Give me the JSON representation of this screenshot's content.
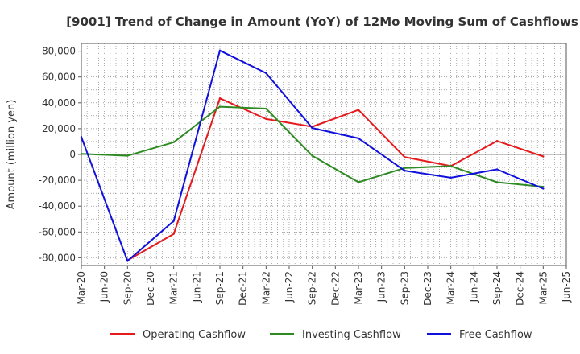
{
  "chart_data": {
    "type": "line",
    "title": "[9001]  Trend of Change in Amount (YoY) of 12Mo Moving Sum of Cashflows",
    "xlabel": "",
    "ylabel": "Amount (million yen)",
    "ylim": [
      -86000,
      86000
    ],
    "yticks": [
      -80000,
      -60000,
      -40000,
      -20000,
      0,
      20000,
      40000,
      60000,
      80000
    ],
    "ytick_labels": [
      "-80,000",
      "-60,000",
      "-40,000",
      "-20,000",
      "0",
      "20,000",
      "40,000",
      "60,000",
      "80,000"
    ],
    "categories": [
      "Mar-20",
      "Jun-20",
      "Sep-20",
      "Dec-20",
      "Mar-21",
      "Jun-21",
      "Sep-21",
      "Dec-21",
      "Mar-22",
      "Jun-22",
      "Sep-22",
      "Dec-22",
      "Mar-23",
      "Jun-23",
      "Sep-23",
      "Dec-23",
      "Mar-24",
      "Jun-24",
      "Sep-24",
      "Dec-24",
      "Mar-25",
      "Jun-25"
    ],
    "grid": true,
    "legend_position": "bottom",
    "series": [
      {
        "name": "Operating Cashflow",
        "color": "#e41a1c",
        "points": [
          [
            2,
            -82000
          ],
          [
            4,
            -61500
          ],
          [
            6,
            43500
          ],
          [
            8,
            27500
          ],
          [
            10,
            21500
          ],
          [
            12,
            34500
          ],
          [
            14,
            -2000
          ],
          [
            16,
            -9000
          ],
          [
            18,
            10500
          ],
          [
            20,
            -1500
          ]
        ]
      },
      {
        "name": "Investing Cashflow",
        "color": "#2e8b22",
        "points": [
          [
            0,
            500
          ],
          [
            2,
            -1000
          ],
          [
            4,
            9500
          ],
          [
            6,
            37000
          ],
          [
            8,
            35500
          ],
          [
            10,
            -1000
          ],
          [
            12,
            -21500
          ],
          [
            14,
            -10500
          ],
          [
            16,
            -9000
          ],
          [
            18,
            -21500
          ],
          [
            20,
            -25000
          ]
        ]
      },
      {
        "name": "Free Cashflow",
        "color": "#1010dd",
        "points": [
          [
            0,
            13500
          ],
          [
            2,
            -82500
          ],
          [
            4,
            -51500
          ],
          [
            6,
            80500
          ],
          [
            8,
            63000
          ],
          [
            10,
            20500
          ],
          [
            12,
            12500
          ],
          [
            14,
            -12500
          ],
          [
            16,
            -18000
          ],
          [
            18,
            -11500
          ],
          [
            20,
            -26500
          ]
        ]
      }
    ]
  }
}
